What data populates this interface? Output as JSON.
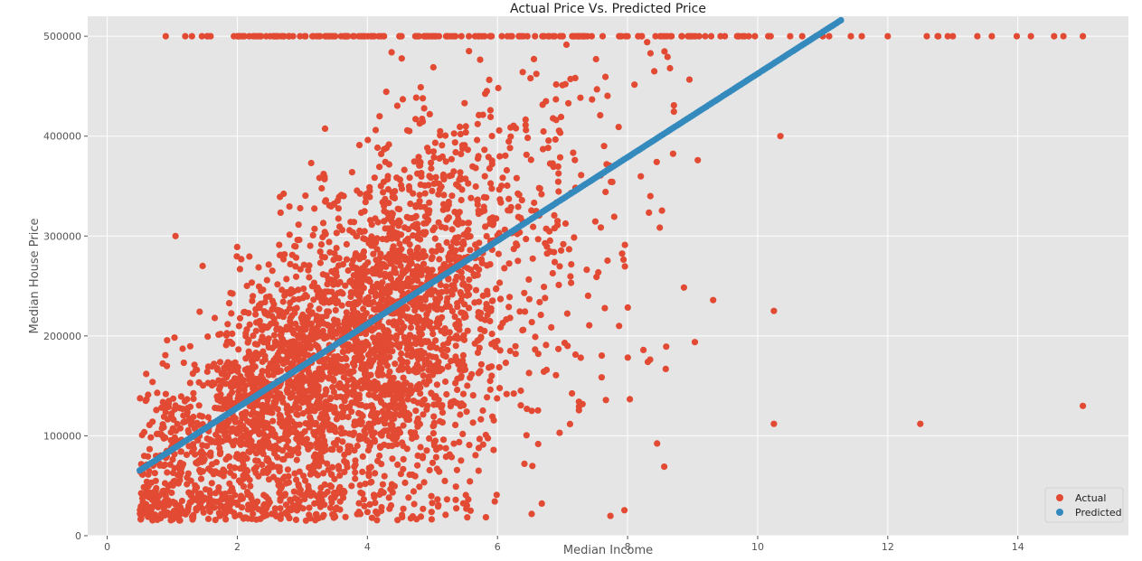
{
  "chart_data": {
    "type": "scatter",
    "title": "Actual Price Vs. Predicted Price",
    "xlabel": "Median Income",
    "ylabel": "Median House Price",
    "xlim": [
      -0.3,
      15.7
    ],
    "ylim": [
      0,
      520000
    ],
    "xticks": [
      0,
      2,
      4,
      6,
      8,
      10,
      12,
      14
    ],
    "yticks": [
      0,
      100000,
      200000,
      300000,
      400000,
      500000
    ],
    "grid": true,
    "legend_position": "bottom-right",
    "series": [
      {
        "name": "Actual",
        "color": "#E24A33",
        "points_note": "dense cloud of ~4000 points",
        "cloud": {
          "x_range": [
            0.5,
            15.0
          ],
          "y_cap": 500001,
          "capped_points_x": [
            0.9,
            1.2,
            2.0,
            2.6,
            3.7,
            4.1,
            4.5,
            5.1,
            5.9,
            6.2,
            6.8,
            7.3,
            8.0,
            8.5,
            9.1,
            9.8,
            10.2,
            10.5,
            11.0,
            11.6,
            12.0,
            12.6,
            13.0,
            13.6,
            14.2,
            14.7,
            15.0
          ],
          "outliers": [
            [
              10.25,
              112000
            ],
            [
              10.25,
              225000
            ],
            [
              12.5,
              112000
            ],
            [
              15.0,
              130000
            ],
            [
              10.35,
              400000
            ],
            [
              1.05,
              300000
            ],
            [
              0.6,
              162000
            ]
          ]
        }
      },
      {
        "name": "Predicted",
        "color": "#348ABD",
        "line": {
          "slope": 41800,
          "intercept": 44500,
          "x_range": [
            0.5,
            11.3
          ]
        }
      }
    ]
  }
}
